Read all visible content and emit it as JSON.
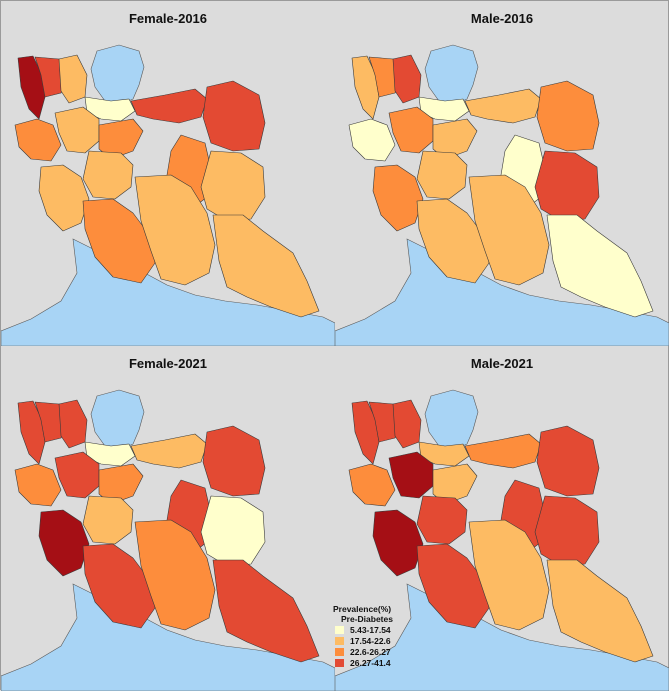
{
  "panels": [
    {
      "title": "Female-2016",
      "fills": [
        "#a50f15",
        "#e34a33",
        "#fdbb63",
        "#ffffcc",
        "#e34a33",
        "#fd8d3c",
        "#fdbb63",
        "#e34a33",
        "#fd8d3c",
        "#fdbb63",
        "#fdbb63",
        "#fd8d3c",
        "#fdbb63",
        "#fd8d3c",
        "#fdbb63",
        "#fdbb63"
      ]
    },
    {
      "title": "Male-2016",
      "fills": [
        "#fdbb63",
        "#fd8d3c",
        "#e34a33",
        "#ffffcc",
        "#fdbb63",
        "#ffffcc",
        "#fd8d3c",
        "#fd8d3c",
        "#fdbb63",
        "#fd8d3c",
        "#fdbb63",
        "#ffffcc",
        "#e34a33",
        "#fdbb63",
        "#fdbb63",
        "#ffffcc"
      ]
    },
    {
      "title": "Female-2021",
      "fills": [
        "#e34a33",
        "#e34a33",
        "#e34a33",
        "#ffffcc",
        "#fdbb63",
        "#fd8d3c",
        "#e34a33",
        "#e34a33",
        "#fd8d3c",
        "#a50f15",
        "#fdbb63",
        "#e34a33",
        "#ffffcc",
        "#e34a33",
        "#fd8d3c",
        "#e34a33"
      ]
    },
    {
      "title": "Male-2021",
      "fills": [
        "#e34a33",
        "#e34a33",
        "#e34a33",
        "#fdbb63",
        "#fd8d3c",
        "#fd8d3c",
        "#a50f15",
        "#e34a33",
        "#fdbb63",
        "#a50f15",
        "#e34a33",
        "#e34a33",
        "#e34a33",
        "#e34a33",
        "#fdbb63",
        "#fdbb63"
      ]
    }
  ],
  "legend": {
    "title": "Prevalence(%)",
    "subtitle": "Pre-Diabetes",
    "items": [
      {
        "label": "5.43-17.54",
        "color": "#ffffcc"
      },
      {
        "label": "17.54-22.6",
        "color": "#fdbb63"
      },
      {
        "label": "22.6-26.27",
        "color": "#fd8d3c"
      },
      {
        "label": "26.27-41.4",
        "color": "#e34a33"
      }
    ]
  },
  "colors": {
    "water": "#a8d4f5",
    "background": "#dcdcdc",
    "dark_red": "#a50f15"
  }
}
